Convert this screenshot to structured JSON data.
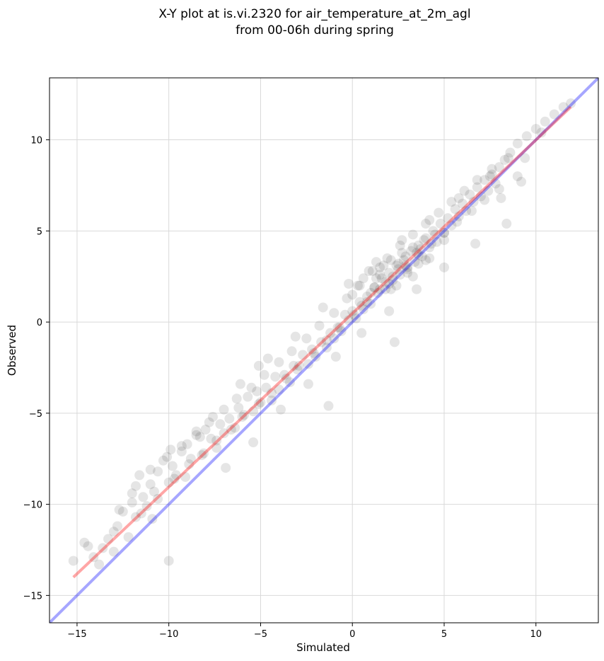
{
  "chart_data": {
    "type": "scatter",
    "title_line1": "X-Y plot at is.vi.2320 for air_temperature_at_2m_agl",
    "title_line2": "from 00-06h during spring",
    "xlabel": "Simulated",
    "ylabel": "Observed",
    "xlim": [
      -16.5,
      13.4
    ],
    "ylim": [
      -16.5,
      13.4
    ],
    "xticks": [
      -15,
      -10,
      -5,
      0,
      5,
      10
    ],
    "yticks": [
      -15,
      -10,
      -5,
      0,
      5,
      10
    ],
    "xtick_labels": [
      "−15",
      "−10",
      "−5",
      "0",
      "5",
      "10"
    ],
    "ytick_labels": [
      "−15",
      "−10",
      "−5",
      "0",
      "5",
      "10"
    ],
    "grid": true,
    "colors": {
      "points": "#000000",
      "identity_line": "#0000ff",
      "fit_line": "#ff0000"
    },
    "identity_line": {
      "x": [
        -16.5,
        13.4
      ],
      "y": [
        -16.5,
        13.4
      ]
    },
    "fit_line": {
      "x": [
        -15.2,
        11.9
      ],
      "y": [
        -14.0,
        11.8
      ]
    },
    "points": {
      "x": [
        -15.2,
        -14.4,
        -14.1,
        -13.8,
        -13.6,
        -13.3,
        -13.0,
        -12.8,
        -12.5,
        -12.2,
        -12.0,
        -11.8,
        -11.6,
        -11.4,
        -11.2,
        -11.0,
        -10.8,
        -10.6,
        -10.3,
        -10.0,
        -9.8,
        -9.6,
        -9.3,
        -9.0,
        -8.8,
        -8.5,
        -8.2,
        -8.0,
        -7.7,
        -7.4,
        -7.2,
        -7.0,
        -6.7,
        -6.4,
        -6.2,
        -6.0,
        -5.7,
        -5.4,
        -5.2,
        -5.0,
        -4.7,
        -4.4,
        -4.2,
        -4.0,
        -3.7,
        -3.4,
        -3.2,
        -3.0,
        -2.7,
        -2.4,
        -2.2,
        -2.0,
        -1.7,
        -1.4,
        -1.2,
        -1.0,
        -0.8,
        -0.6,
        -0.4,
        -0.2,
        0.0,
        0.2,
        0.4,
        0.6,
        0.8,
        1.0,
        1.2,
        1.4,
        1.6,
        1.8,
        2.0,
        2.2,
        2.4,
        2.6,
        2.8,
        3.0,
        3.2,
        3.4,
        3.6,
        3.8,
        4.0,
        4.2,
        4.4,
        4.6,
        4.8,
        5.0,
        5.2,
        5.4,
        5.6,
        5.8,
        6.0,
        6.2,
        6.4,
        6.6,
        6.8,
        7.0,
        7.2,
        7.4,
        7.6,
        7.8,
        8.0,
        8.3,
        8.6,
        9.0,
        9.5,
        10.0,
        10.5,
        11.0,
        11.5,
        11.9,
        -12.7,
        -12.0,
        -11.5,
        -11.0,
        -10.6,
        -10.1,
        -9.7,
        -9.3,
        -8.9,
        -8.5,
        -8.1,
        -7.8,
        -7.4,
        -7.0,
        -6.6,
        -6.3,
        -5.9,
        -5.5,
        -5.1,
        -4.8,
        -4.4,
        -4.0,
        -3.6,
        -3.3,
        -2.9,
        -2.5,
        -2.1,
        -1.8,
        -1.4,
        -1.0,
        -0.7,
        -0.3,
        0.1,
        0.4,
        0.8,
        1.1,
        1.5,
        1.9,
        2.2,
        2.6,
        2.9,
        3.3,
        3.6,
        4.0,
        4.3,
        4.7,
        5.0,
        5.4,
        5.7,
        6.1,
        6.5,
        6.8,
        7.2,
        7.6,
        8.0,
        8.5,
        9.0,
        -14.6,
        -13.0,
        -11.8,
        -10.9,
        -9.9,
        -9.1,
        -8.3,
        -7.6,
        -6.9,
        -6.1,
        -5.4,
        -4.6,
        -3.9,
        -3.1,
        -2.4,
        -1.6,
        -0.9,
        -0.2,
        0.5,
        1.3,
        2.0,
        2.7,
        3.5,
        4.2,
        5.0,
        5.8,
        6.7,
        7.5,
        8.4,
        9.4,
        10.3,
        0.0,
        0.3,
        0.6,
        0.9,
        1.2,
        1.5,
        1.8,
        2.1,
        2.4,
        2.7,
        3.0,
        3.3,
        3.6,
        3.9,
        4.2,
        4.5,
        0.5,
        1.0,
        1.5,
        2.0,
        2.5,
        3.0,
        3.5,
        4.0,
        1.3,
        1.7,
        2.1,
        2.5,
        2.9,
        3.3,
        3.7,
        -10.0,
        -5.1,
        -1.3,
        2.3,
        5.0,
        8.1,
        9.2
      ],
      "y": [
        -13.1,
        -12.3,
        -12.9,
        -13.3,
        -12.4,
        -11.9,
        -12.6,
        -11.2,
        -10.4,
        -11.8,
        -9.9,
        -10.7,
        -8.4,
        -9.6,
        -10.1,
        -8.9,
        -9.3,
        -8.2,
        -7.6,
        -8.8,
        -7.9,
        -8.4,
        -7.1,
        -6.7,
        -7.5,
        -6.2,
        -7.3,
        -5.9,
        -6.4,
        -6.9,
        -5.6,
        -6.1,
        -5.3,
        -5.8,
        -4.7,
        -5.2,
        -4.1,
        -4.9,
        -3.8,
        -4.4,
        -3.6,
        -4.3,
        -3.0,
        -3.7,
        -2.9,
        -3.3,
        -2.4,
        -2.6,
        -1.8,
        -2.3,
        -1.5,
        -1.9,
        -1.1,
        -1.4,
        -0.6,
        -0.9,
        -0.3,
        -0.5,
        0.4,
        0.1,
        0.6,
        0.2,
        1.1,
        0.7,
        1.4,
        1.0,
        1.9,
        1.6,
        2.4,
        1.8,
        2.7,
        2.3,
        3.1,
        2.6,
        3.4,
        3.0,
        3.9,
        3.3,
        4.2,
        3.6,
        4.6,
        4.1,
        5.0,
        4.4,
        5.4,
        4.9,
        5.7,
        5.3,
        6.2,
        5.8,
        6.5,
        6.1,
        7.0,
        6.6,
        7.4,
        6.9,
        7.8,
        7.2,
        8.1,
        7.6,
        8.5,
        8.9,
        9.3,
        9.8,
        10.2,
        10.6,
        11.0,
        11.4,
        11.8,
        12.0,
        -10.3,
        -9.4,
        -10.5,
        -8.1,
        -9.7,
        -7.4,
        -8.6,
        -6.8,
        -7.8,
        -6.0,
        -7.2,
        -5.5,
        -6.5,
        -4.8,
        -5.9,
        -4.2,
        -5.1,
        -3.6,
        -4.5,
        -2.9,
        -3.9,
        -2.2,
        -3.1,
        -1.6,
        -2.4,
        -0.9,
        -1.7,
        -0.2,
        -1.0,
        0.5,
        -0.3,
        1.3,
        0.4,
        2.0,
        1.1,
        2.8,
        1.8,
        3.5,
        2.5,
        4.2,
        3.1,
        4.8,
        3.7,
        5.4,
        4.3,
        6.0,
        4.9,
        6.6,
        5.5,
        7.2,
        6.1,
        7.8,
        6.7,
        8.4,
        7.3,
        9.0,
        8.0,
        -12.1,
        -11.5,
        -9.0,
        -10.8,
        -7.0,
        -8.5,
        -6.3,
        -5.2,
        -8.0,
        -3.4,
        -6.6,
        -2.0,
        -4.8,
        -0.8,
        -3.4,
        0.8,
        -1.9,
        2.1,
        -0.6,
        3.3,
        0.6,
        4.5,
        1.8,
        5.6,
        3.0,
        6.8,
        4.3,
        8.0,
        5.4,
        9.0,
        10.4,
        1.5,
        2.0,
        2.4,
        2.8,
        1.9,
        3.0,
        2.2,
        3.4,
        2.0,
        3.8,
        2.7,
        4.1,
        3.2,
        4.5,
        3.5,
        4.8,
        0.9,
        1.6,
        2.6,
        2.1,
        3.2,
        2.9,
        3.8,
        3.4,
        2.4,
        3.1,
        1.8,
        2.9,
        3.6,
        2.5,
        4.0,
        -13.1,
        -2.4,
        -4.6,
        -1.1,
        4.5,
        6.8,
        7.7
      ]
    }
  }
}
